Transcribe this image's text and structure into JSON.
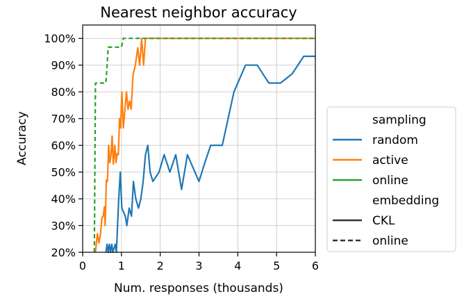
{
  "chart_data": {
    "type": "line",
    "title": "Nearest neighbor accuracy",
    "xlabel": "Num. responses (thousands)",
    "ylabel": "Accuracy",
    "xlim": [
      0,
      6
    ],
    "ylim": [
      20,
      105
    ],
    "x_ticks": [
      0,
      1,
      2,
      3,
      4,
      5,
      6
    ],
    "x_tick_labels": [
      "0",
      "1",
      "2",
      "3",
      "4",
      "5",
      "6"
    ],
    "y_ticks": [
      20,
      30,
      40,
      50,
      60,
      70,
      80,
      90,
      100
    ],
    "y_tick_labels": [
      "20%",
      "30%",
      "40%",
      "50%",
      "60%",
      "70%",
      "80%",
      "90%",
      "100%"
    ],
    "grid": true,
    "legend": {
      "placement": "right",
      "sections": [
        {
          "title": "sampling",
          "entries": [
            {
              "label": "random",
              "color": "#1f77b4",
              "dash": "solid"
            },
            {
              "label": "active",
              "color": "#ff7f0e",
              "dash": "solid"
            },
            {
              "label": "online",
              "color": "#2ca02c",
              "dash": "solid"
            }
          ]
        },
        {
          "title": "embedding",
          "entries": [
            {
              "label": "CKL",
              "color": "#333333",
              "dash": "solid"
            },
            {
              "label": "online",
              "color": "#333333",
              "dash": "dashed"
            }
          ]
        }
      ]
    },
    "series": [
      {
        "name": "random",
        "color": "#1f77b4",
        "dash": "solid",
        "points": [
          [
            0.6,
            20
          ],
          [
            0.63,
            23
          ],
          [
            0.66,
            20
          ],
          [
            0.69,
            23
          ],
          [
            0.72,
            20
          ],
          [
            0.75,
            23
          ],
          [
            0.78,
            20
          ],
          [
            0.84,
            23
          ],
          [
            0.87,
            20
          ],
          [
            0.93,
            40
          ],
          [
            0.97,
            50
          ],
          [
            1.01,
            36.5
          ],
          [
            1.1,
            33.5
          ],
          [
            1.14,
            30
          ],
          [
            1.2,
            36.5
          ],
          [
            1.26,
            33.5
          ],
          [
            1.31,
            46.5
          ],
          [
            1.37,
            40
          ],
          [
            1.44,
            36.5
          ],
          [
            1.5,
            40
          ],
          [
            1.56,
            46.5
          ],
          [
            1.62,
            56.5
          ],
          [
            1.68,
            60
          ],
          [
            1.74,
            50
          ],
          [
            1.81,
            46.5
          ],
          [
            1.97,
            50
          ],
          [
            2.1,
            56.5
          ],
          [
            2.25,
            50
          ],
          [
            2.4,
            56.5
          ],
          [
            2.55,
            43.5
          ],
          [
            2.7,
            56.5
          ],
          [
            2.85,
            51.5
          ],
          [
            3.0,
            46.5
          ],
          [
            3.15,
            53.5
          ],
          [
            3.3,
            60
          ],
          [
            3.6,
            60
          ],
          [
            3.9,
            80
          ],
          [
            4.2,
            90
          ],
          [
            4.5,
            90
          ],
          [
            4.8,
            83.3
          ],
          [
            5.1,
            83.3
          ],
          [
            5.4,
            86.7
          ],
          [
            5.7,
            93.3
          ],
          [
            6.0,
            93.3
          ]
        ]
      },
      {
        "name": "active",
        "color": "#ff7f0e",
        "dash": "solid",
        "points": [
          [
            0.33,
            20
          ],
          [
            0.38,
            27
          ],
          [
            0.42,
            23.5
          ],
          [
            0.46,
            27
          ],
          [
            0.5,
            33
          ],
          [
            0.53,
            33.5
          ],
          [
            0.56,
            37
          ],
          [
            0.58,
            30
          ],
          [
            0.61,
            47
          ],
          [
            0.64,
            46.5
          ],
          [
            0.67,
            60
          ],
          [
            0.7,
            53.5
          ],
          [
            0.73,
            56.5
          ],
          [
            0.76,
            63.5
          ],
          [
            0.79,
            53
          ],
          [
            0.83,
            60
          ],
          [
            0.86,
            53.5
          ],
          [
            0.89,
            57
          ],
          [
            0.92,
            56.5
          ],
          [
            0.95,
            70
          ],
          [
            0.98,
            66.5
          ],
          [
            1.01,
            80
          ],
          [
            1.05,
            66.5
          ],
          [
            1.09,
            73.5
          ],
          [
            1.13,
            80
          ],
          [
            1.17,
            73.5
          ],
          [
            1.21,
            76.5
          ],
          [
            1.25,
            73.5
          ],
          [
            1.3,
            86.5
          ],
          [
            1.36,
            90
          ],
          [
            1.42,
            96.5
          ],
          [
            1.47,
            90
          ],
          [
            1.52,
            100
          ],
          [
            1.57,
            90
          ],
          [
            1.62,
            100
          ],
          [
            1.66,
            100
          ],
          [
            6.0,
            100
          ]
        ]
      },
      {
        "name": "online",
        "color": "#2ca02c",
        "dash": "dashed",
        "points": [
          [
            0.3,
            20
          ],
          [
            0.33,
            83.3
          ],
          [
            0.6,
            83.3
          ],
          [
            0.66,
            96.7
          ],
          [
            1.0,
            96.7
          ],
          [
            1.05,
            100
          ],
          [
            6.0,
            100
          ]
        ]
      }
    ]
  }
}
